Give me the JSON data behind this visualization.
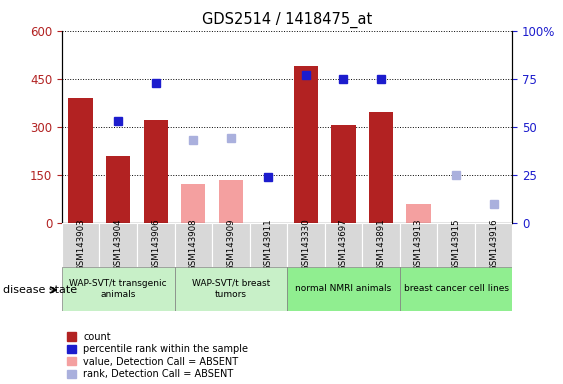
{
  "title": "GDS2514 / 1418475_at",
  "samples": [
    "GSM143903",
    "GSM143904",
    "GSM143906",
    "GSM143908",
    "GSM143909",
    "GSM143911",
    "GSM143330",
    "GSM143697",
    "GSM143891",
    "GSM143913",
    "GSM143915",
    "GSM143916"
  ],
  "count_present": [
    390,
    210,
    320,
    null,
    null,
    null,
    490,
    305,
    345,
    null,
    null,
    null
  ],
  "count_absent": [
    null,
    null,
    null,
    120,
    135,
    null,
    null,
    null,
    null,
    60,
    null,
    null
  ],
  "rank_present_pct": [
    null,
    53,
    73,
    null,
    null,
    24,
    77,
    75,
    75,
    null,
    null,
    null
  ],
  "rank_absent_pct": [
    null,
    null,
    null,
    43,
    44,
    null,
    null,
    null,
    null,
    null,
    25,
    10
  ],
  "groups": [
    {
      "label": "WAP-SVT/t transgenic\nanimals",
      "start": 0,
      "end": 3,
      "color": "#c8f0c8"
    },
    {
      "label": "WAP-SVT/t breast\ntumors",
      "start": 3,
      "end": 6,
      "color": "#c8f0c8"
    },
    {
      "label": "normal NMRI animals",
      "start": 6,
      "end": 9,
      "color": "#90ee90"
    },
    {
      "label": "breast cancer cell lines",
      "start": 9,
      "end": 12,
      "color": "#90ee90"
    }
  ],
  "ylim_left": [
    0,
    600
  ],
  "ylim_right": [
    0,
    100
  ],
  "yticks_left": [
    0,
    150,
    300,
    450,
    600
  ],
  "yticks_right": [
    0,
    25,
    50,
    75,
    100
  ],
  "bar_width": 0.65,
  "count_color": "#b22222",
  "rank_color": "#1c1ccd",
  "count_absent_color": "#f4a0a0",
  "rank_absent_color": "#aab0dd",
  "legend_items": [
    {
      "label": "count",
      "color": "#b22222"
    },
    {
      "label": "percentile rank within the sample",
      "color": "#1c1ccd"
    },
    {
      "label": "value, Detection Call = ABSENT",
      "color": "#f4a0a0"
    },
    {
      "label": "rank, Detection Call = ABSENT",
      "color": "#aab0dd"
    }
  ],
  "tick_bg_color": "#d8d8d8",
  "grid_linestyle": "dotted",
  "grid_color": "black"
}
